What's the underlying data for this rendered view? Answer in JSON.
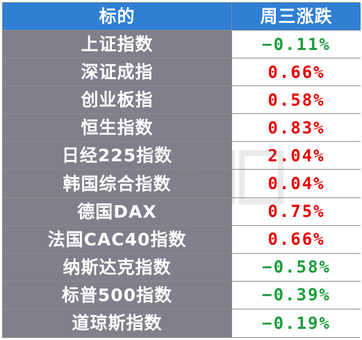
{
  "table": {
    "headers": [
      "标的",
      "周三涨跌"
    ],
    "rows": [
      {
        "name": "上证指数",
        "change": "−0.11%",
        "direction": "down"
      },
      {
        "name": "深证成指",
        "change": "0.66%",
        "direction": "up"
      },
      {
        "name": "创业板指",
        "change": "0.58%",
        "direction": "up"
      },
      {
        "name": "恒生指数",
        "change": "0.83%",
        "direction": "up"
      },
      {
        "name": "日经225指数",
        "change": "2.04%",
        "direction": "up"
      },
      {
        "name": "韩国综合指数",
        "change": "0.04%",
        "direction": "up"
      },
      {
        "name": "德国DAX",
        "change": "0.75%",
        "direction": "up"
      },
      {
        "name": "法国CAC40指数",
        "change": "0.66%",
        "direction": "up"
      },
      {
        "name": "纳斯达克指数",
        "change": "−0.58%",
        "direction": "down"
      },
      {
        "name": "标普500指数",
        "change": "−0.39%",
        "direction": "down"
      },
      {
        "name": "道琼斯指数",
        "change": "−0.19%",
        "direction": "down"
      }
    ]
  },
  "watermark": {
    "text": "财联社"
  },
  "colors": {
    "header_bg": "#2f7fd5",
    "name_bg": "#80808c",
    "up": "#e60000",
    "down": "#1a9e3a"
  }
}
